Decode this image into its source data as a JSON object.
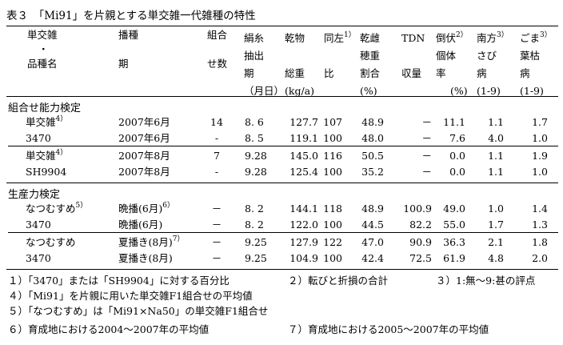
{
  "title": "表３　「Mi91」を片親とする単交雑一代雑種の特性",
  "headers": {
    "col1": [
      "単交雑",
      "・",
      "品種名"
    ],
    "col2": [
      "播種",
      "",
      "期"
    ],
    "col3": [
      "組合",
      "",
      "せ数"
    ],
    "col4": [
      "絹糸",
      "抽出",
      "期",
      "（月日）"
    ],
    "col5": [
      "乾物",
      "",
      "総重",
      "(kg/a)"
    ],
    "col6": [
      "同左",
      "",
      "比"
    ],
    "col6_sup": "1）",
    "col7": [
      "乾雌",
      "穂重",
      "割合",
      "(%)"
    ],
    "col8": [
      "TDN",
      "",
      "収量"
    ],
    "col9": [
      "倒伏",
      "個体",
      "率",
      "(%)"
    ],
    "col9_sup": "2）",
    "col10": [
      "南方",
      "さび",
      "病",
      "(1-9)"
    ],
    "col10_sup": "3）",
    "col11": [
      "ごま",
      "葉枯",
      "病",
      "(1-9)"
    ],
    "col11_sup": "3）"
  },
  "sections": {
    "s1": "組合せ能力検定",
    "s2": "生産力検定"
  },
  "rows": [
    {
      "name": "単交雑",
      "sup": "4）",
      "sow": "2007年6月",
      "sow_sup": "",
      "n": "14",
      "silk": "8. 6",
      "dm": "127.7",
      "ratio": "107",
      "ear": "48.9",
      "tdn": "－",
      "lodge": "11.1",
      "rust": "1.1",
      "leaf": "1.7"
    },
    {
      "name": "3470",
      "sup": "",
      "sow": "2007年6月",
      "sow_sup": "",
      "n": "-",
      "silk": "8. 5",
      "dm": "119.1",
      "ratio": "100",
      "ear": "48.0",
      "tdn": "－",
      "lodge": "7.6",
      "rust": "4.0",
      "leaf": "1.0"
    },
    {
      "name": "単交雑",
      "sup": "4）",
      "sow": "2007年8月",
      "sow_sup": "",
      "n": "7",
      "silk": "9.28",
      "dm": "145.0",
      "ratio": "116",
      "ear": "50.5",
      "tdn": "－",
      "lodge": "0.0",
      "rust": "1.1",
      "leaf": "1.9"
    },
    {
      "name": "SH9904",
      "sup": "",
      "sow": "2007年8月",
      "sow_sup": "",
      "n": "-",
      "silk": "9.28",
      "dm": "125.4",
      "ratio": "100",
      "ear": "35.2",
      "tdn": "－",
      "lodge": "0.0",
      "rust": "1.1",
      "leaf": "1.0"
    },
    {
      "name": "なつむすめ",
      "sup": "5）",
      "sow": "晩播(6月)",
      "sow_sup": "6）",
      "n": "－",
      "silk": "8. 2",
      "dm": "144.1",
      "ratio": "118",
      "ear": "48.9",
      "tdn": "100.9",
      "lodge": "49.0",
      "rust": "1.0",
      "leaf": "1.4"
    },
    {
      "name": "3470",
      "sup": "",
      "sow": "晩播(6月)",
      "sow_sup": "",
      "n": "－",
      "silk": "8. 2",
      "dm": "122.0",
      "ratio": "100",
      "ear": "44.5",
      "tdn": "82.2",
      "lodge": "55.0",
      "rust": "1.7",
      "leaf": "1.3"
    },
    {
      "name": "なつむすめ",
      "sup": "",
      "sow": "夏播き(8月)",
      "sow_sup": "7）",
      "n": "－",
      "silk": "9.25",
      "dm": "127.9",
      "ratio": "122",
      "ear": "47.0",
      "tdn": "90.9",
      "lodge": "36.3",
      "rust": "2.1",
      "leaf": "1.8"
    },
    {
      "name": "3470",
      "sup": "",
      "sow": "夏播き(8月)",
      "sow_sup": "",
      "n": "－",
      "silk": "9.25",
      "dm": "104.9",
      "ratio": "100",
      "ear": "42.4",
      "tdn": "72.5",
      "lodge": "61.9",
      "rust": "4.8",
      "leaf": "2.0"
    }
  ],
  "notes": {
    "n1": "１）「3470」または「SH9904」に対する百分比",
    "n2": "２）転びと折損の合計",
    "n3": "３）1:無～9:甚の評点",
    "n4": "４）「Mi91」を片親に用いた単交雑F1組合せの平均値",
    "n5": "５）「なつむすめ」は「Mi91×Na50」の単交雑F1組合せ",
    "n6": "６）育成地における2004～2007年の平均値",
    "n7": "７）育成地における2005～2007年の平均値"
  }
}
